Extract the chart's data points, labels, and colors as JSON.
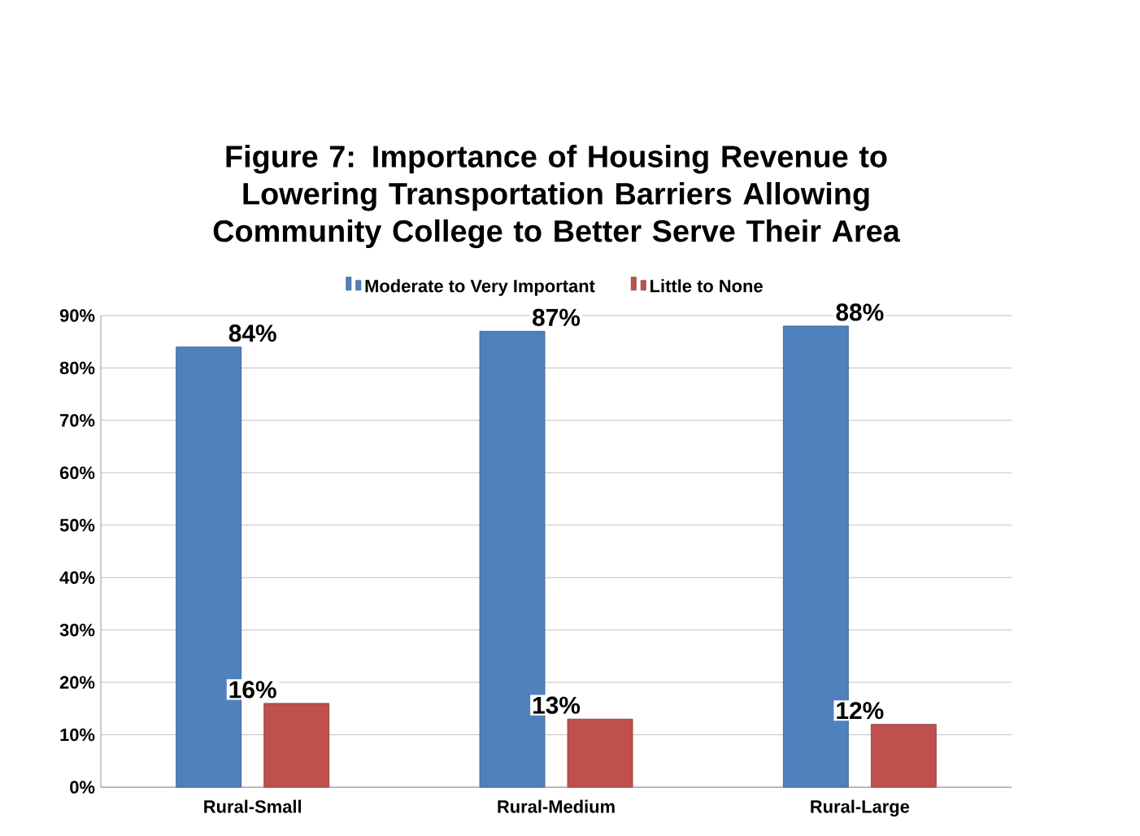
{
  "chart_data": {
    "type": "bar",
    "title": "Figure 7: Importance of Housing Revenue to Lowering Transportation Barriers Allowing Community College to Better Serve Their Area",
    "categories": [
      "Rural-Small",
      "Rural-Medium",
      "Rural-Large"
    ],
    "series": [
      {
        "name": "Moderate to Very Important",
        "color": "#4f81bd",
        "values": [
          84,
          87,
          88
        ],
        "value_labels": [
          "84%",
          "87%",
          "88%"
        ]
      },
      {
        "name": "Little to None",
        "color": "#c0504d",
        "values": [
          16,
          13,
          12
        ],
        "value_labels": [
          "16%",
          "13%",
          "12%"
        ]
      }
    ],
    "ylim": [
      0,
      90
    ],
    "yticks": [
      {
        "value": 0,
        "label": "0%"
      },
      {
        "value": 10,
        "label": "10%"
      },
      {
        "value": 20,
        "label": "20%"
      },
      {
        "value": 30,
        "label": "30%"
      },
      {
        "value": 40,
        "label": "40%"
      },
      {
        "value": 50,
        "label": "50%"
      },
      {
        "value": 60,
        "label": "60%"
      },
      {
        "value": 70,
        "label": "70%"
      },
      {
        "value": 80,
        "label": "80%"
      },
      {
        "value": 90,
        "label": "90%"
      }
    ],
    "grid": "y",
    "legend": "top"
  }
}
